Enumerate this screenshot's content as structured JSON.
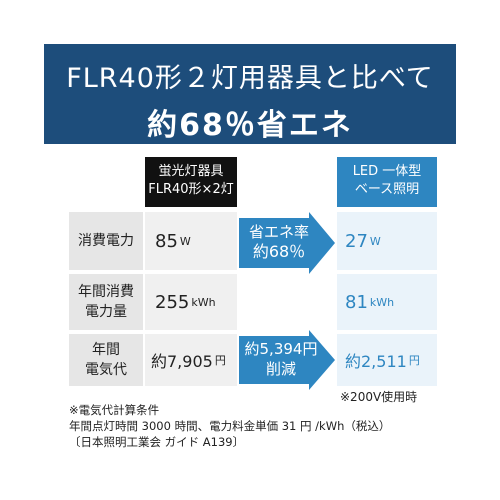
{
  "banner": {
    "line1": "FLR40形２灯用器具と比べて",
    "line2": "約68％省エネ"
  },
  "headers": {
    "old": [
      "蛍光灯器具",
      "FLR40形×2灯"
    ],
    "led": [
      "LED 一体型",
      "ベース照明"
    ]
  },
  "rows": [
    {
      "label": [
        "消費電力"
      ],
      "old_value": "85",
      "old_unit": "W",
      "led_value": "27",
      "led_unit": "W"
    },
    {
      "label": [
        "年間消費",
        "電力量"
      ],
      "old_value": "255",
      "old_unit": "kWh",
      "led_value": "81",
      "led_unit": "kWh"
    },
    {
      "label": [
        "年間",
        "電気代"
      ],
      "old_value": "約7,905",
      "old_unit": "円",
      "led_value": "約2,511",
      "led_unit": "円"
    }
  ],
  "arrows": [
    {
      "line1": "省エネ率",
      "line2": "約68％"
    },
    {
      "line1": "約5,394円",
      "line2": "削減"
    }
  ],
  "note_voltage": "※200V使用時",
  "notes": [
    "※電気代計算条件",
    "年間点灯時間 3000 時間、電力料金単価 31 円 /kWh（税込）",
    "〔日本照明工業会 ガイド A139〕"
  ],
  "colors": {
    "banner": "#1d4d7b",
    "accent": "#2e86c1"
  }
}
